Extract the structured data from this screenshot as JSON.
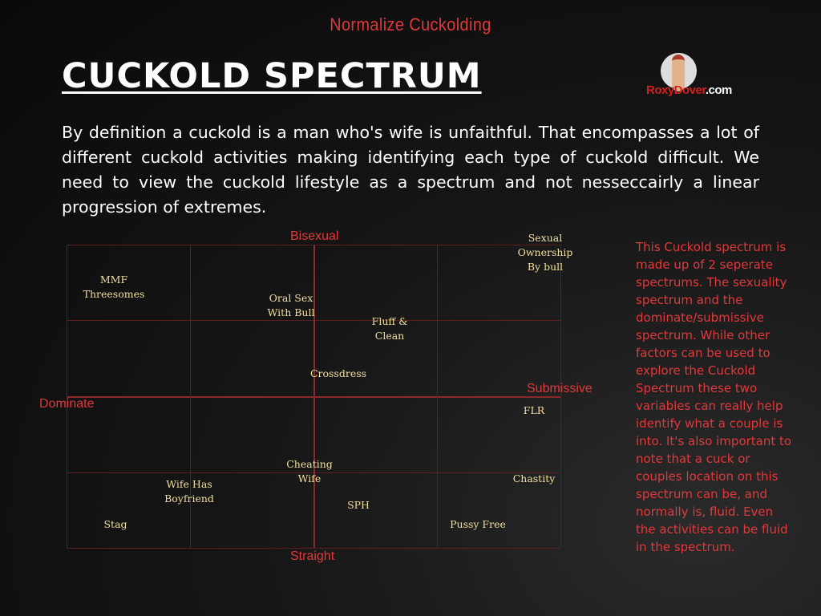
{
  "header": {
    "tagline": "Normalize Cuckolding",
    "title": "CUCKOLD SPECTRUM",
    "logo_text": "RoxyDover.com",
    "logo_text_a": "RoxyDover",
    "logo_text_b": ".com"
  },
  "intro": "By definition a cuckold is a man who's wife is unfaithful. That encompasses a lot of different cuckold activities making identifying each type of cuckold difficult. We need to view the cuckold lifestyle as a spectrum and not nesseccairly a linear progression of extremes.",
  "sidebar_text": "This Cuckold spectrum is made up of 2 seperate spectrums. The sexuality spectrum and the dominate/submissive spectrum.  While other factors can be used to explore the Cuckold Spectrum these two variables can really help identify what a couple is into. It's also important to note that a cuck or couples location on this spectrum can be, and normally is, fluid. Even the activities can be fluid in the spectrum.",
  "diagram": {
    "axes": {
      "top": "Bisexual",
      "bottom": "Straight",
      "left": "Dominate",
      "right": "Submissive"
    },
    "items": [
      "Sexual\nOwnership\nBy bull",
      "MMF\nThreesomes",
      "Oral Sex\nWith Bull",
      "Fluff &\nClean",
      "Crossdress",
      "FLR",
      "Cheating\nWife",
      "Chastity",
      "Wife Has\nBoyfriend",
      "SPH",
      "Stag",
      "Pussy Free"
    ],
    "colors": {
      "axis_label": "#e0393c",
      "item_text": "#f1dfa0",
      "grid": "#5a2020"
    }
  }
}
